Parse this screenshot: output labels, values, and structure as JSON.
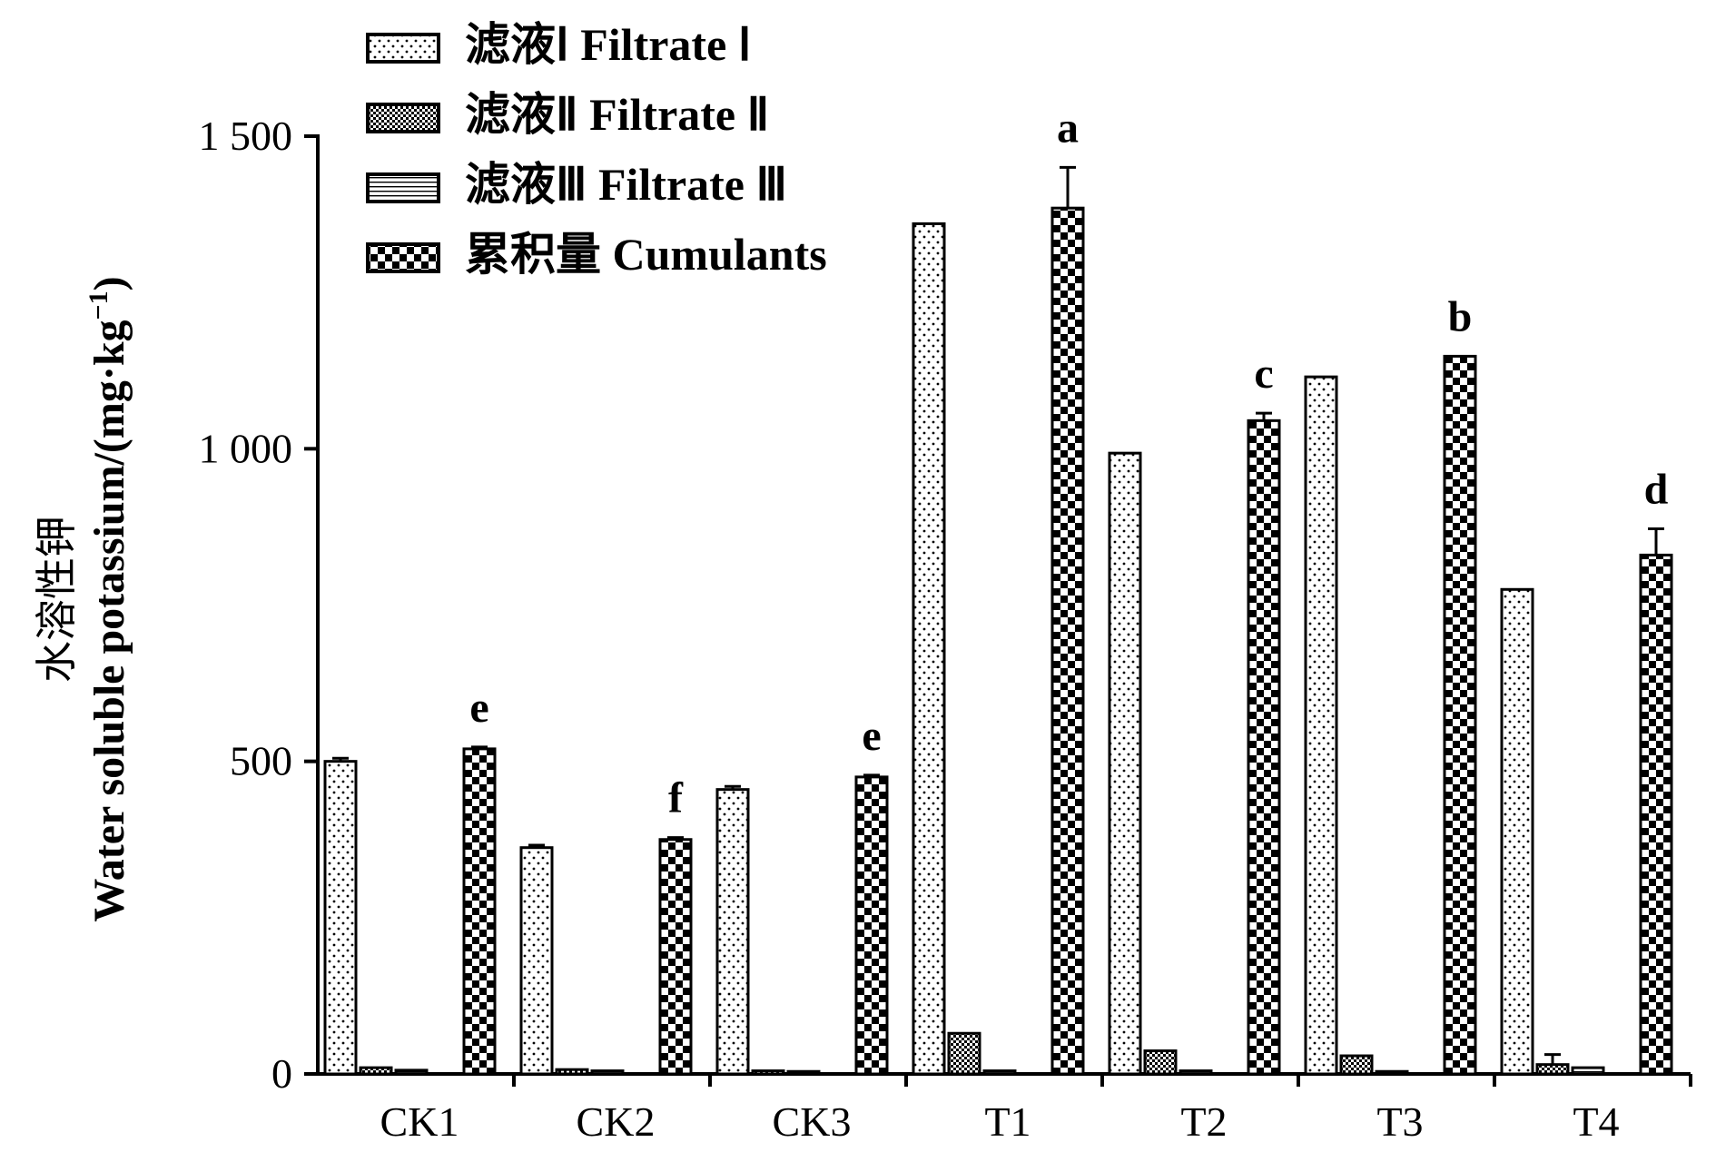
{
  "chart_data": {
    "type": "bar",
    "ylabel_cn": "水溶性钾",
    "ylabel_en": "Water soluble potassium/(mg·kg",
    "ylabel_sup": "−1",
    "ylabel_close": ")",
    "ylim": [
      0,
      1500
    ],
    "yticks": [
      0,
      500,
      1000,
      1500
    ],
    "ytick_labels": [
      "0",
      "500",
      "1 000",
      "1 500"
    ],
    "grid": false,
    "legend_position": "top-left",
    "categories": [
      "CK1",
      "CK2",
      "CK3",
      "T1",
      "T2",
      "T3",
      "T4"
    ],
    "series": [
      {
        "name": "滤液Ⅰ Filtrate Ⅰ",
        "pattern": "dots",
        "values": [
          500,
          362,
          455,
          1360,
          993,
          1115,
          775
        ],
        "errors": [
          5,
          4,
          5,
          0,
          0,
          0,
          0
        ]
      },
      {
        "name": "滤液Ⅱ Filtrate Ⅱ",
        "pattern": "fine-check",
        "values": [
          10,
          7,
          5,
          65,
          37,
          29,
          15
        ],
        "errors": [
          0,
          0,
          0,
          0,
          0,
          0,
          16
        ]
      },
      {
        "name": "滤液Ⅲ Filtrate Ⅲ",
        "pattern": "lines",
        "values": [
          6,
          5,
          4,
          5,
          5,
          4,
          10
        ],
        "errors": [
          0,
          0,
          0,
          0,
          0,
          0,
          0
        ]
      },
      {
        "name": "累积量 Cumulants",
        "pattern": "checker",
        "values": [
          520,
          375,
          475,
          1385,
          1045,
          1148,
          830
        ],
        "errors": [
          3,
          3,
          3,
          65,
          12,
          0,
          42
        ]
      }
    ],
    "significance_letters": [
      "e",
      "f",
      "e",
      "a",
      "c",
      "b",
      "d"
    ]
  }
}
